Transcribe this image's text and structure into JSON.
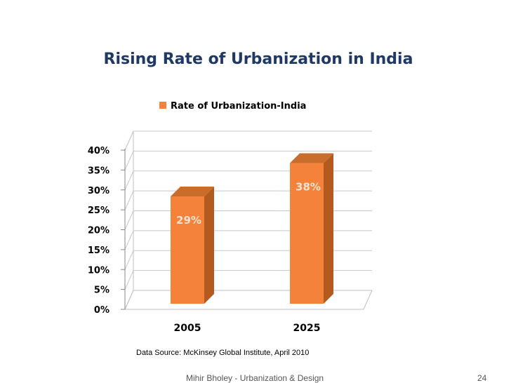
{
  "slide": {
    "title": "Rising Rate of Urbanization in India",
    "source": "Data Source: McKinsey Global Institute, April 2010",
    "footer": "Mihir Bholey - Urbanization & Design",
    "page_number": "24"
  },
  "colors": {
    "title": "#1f3864",
    "bar_front": "#f5823a",
    "bar_side": "#b35a1f",
    "bar_top": "#c96d2c",
    "data_label": "#f7e3d0"
  },
  "chart_data": {
    "type": "bar",
    "title": "Rising Rate of Urbanization in India",
    "categories": [
      "2005",
      "2025"
    ],
    "series": [
      {
        "name": "Rate of Urbanization-India",
        "values": [
          29,
          38
        ]
      }
    ],
    "data_labels": [
      "29%",
      "38%"
    ],
    "yticks": [
      "0%",
      "5%",
      "10%",
      "15%",
      "20%",
      "25%",
      "30%",
      "35%",
      "40%"
    ],
    "ylim": [
      0,
      40
    ],
    "grid": true,
    "legend_position": "top",
    "three_d": true
  }
}
